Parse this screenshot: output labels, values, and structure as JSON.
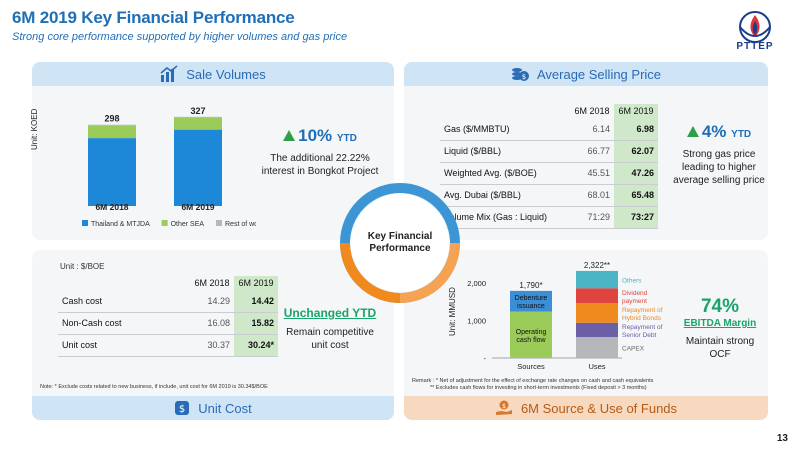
{
  "header": {
    "title": "6M 2019 Key Financial Performance",
    "subtitle": "Strong core performance supported by higher volumes and gas price",
    "logo_text": "PTTEP"
  },
  "center": {
    "label_line1": "Key Financial",
    "label_line2": "Performance"
  },
  "sale_volumes": {
    "title": "Sale Volumes",
    "ylabel": "Unit: KOED",
    "stat_value": "10%",
    "stat_suffix": "YTD",
    "stat_desc_line1": "The additional 22.22%",
    "stat_desc_line2": "interest in Bongkot Project",
    "chart_data": {
      "type": "bar",
      "stacked": true,
      "categories": [
        "6M 2018",
        "6M 2019"
      ],
      "totals": [
        298,
        327
      ],
      "ylabel": "Unit: KOED",
      "series": [
        {
          "name": "Thailand & MTJDA",
          "values": [
            249,
            280
          ],
          "color": "#1e88d8"
        },
        {
          "name": "Other SEA",
          "values": [
            47,
            45
          ],
          "color": "#9bcc59"
        },
        {
          "name": "Rest of world",
          "values": [
            2,
            2
          ],
          "color": "#b5b8bb"
        }
      ]
    }
  },
  "avg_price": {
    "title": "Average Selling Price",
    "col_2018": "6M 2018",
    "col_2019": "6M 2019",
    "rows": [
      {
        "label": "Gas ($/MMBTU)",
        "v2018": "6.14",
        "v2019": "6.98"
      },
      {
        "label": "Liquid ($/BBL)",
        "v2018": "66.77",
        "v2019": "62.07"
      },
      {
        "label": "Weighted Avg. ($/BOE)",
        "v2018": "45.51",
        "v2019": "47.26"
      },
      {
        "label": "Avg. Dubai ($/BBL)",
        "v2018": "68.01",
        "v2019": "65.48"
      },
      {
        "label": "Volume Mix (Gas : Liquid)",
        "v2018": "71:29",
        "v2019": "73:27"
      }
    ],
    "stat_value": "4%",
    "stat_suffix": "YTD",
    "stat_desc_line1": "Strong gas price",
    "stat_desc_line2": "leading to higher",
    "stat_desc_line3": "average selling price"
  },
  "unit_cost": {
    "title": "Unit Cost",
    "unit": "Unit : $/BOE",
    "col_2018": "6M 2018",
    "col_2019": "6M 2019",
    "rows": [
      {
        "label": "Cash cost",
        "v2018": "14.29",
        "v2019": "14.42"
      },
      {
        "label": "Non-Cash cost",
        "v2018": "16.08",
        "v2019": "15.82"
      },
      {
        "label": "Unit cost",
        "v2018": "30.37",
        "v2019": "30.24*"
      }
    ],
    "stat_value": "Unchanged YTD",
    "stat_desc_line1": "Remain competitive",
    "stat_desc_line2": "unit cost",
    "note": "Note:  * Exclude costs related to new business, if include, unit cost for 6M 2019 is 30.34$/BOE"
  },
  "funds": {
    "title": "6M Source & Use of Funds",
    "ylabel": "Unit: MMUSD",
    "stat_value": "74%",
    "stat_sub": "EBITDA Margin",
    "stat_desc_line1": "Maintain strong",
    "stat_desc_line2": "OCF",
    "remark_line1": "Remark : *    Net of adjustment for the effect of exchange rate changes on cash and cash equivalents",
    "remark_line2": "**   Excludes cash flows for investing in short-term investments (Fixed deposit > 3 months)",
    "chart_data": {
      "type": "bar",
      "stacked": true,
      "categories": [
        "Sources",
        "Uses"
      ],
      "totals": [
        "1,790*",
        "2,322**"
      ],
      "y_ticks": [
        "-",
        "1,000",
        "2,000"
      ],
      "ylim": [
        0,
        2500
      ],
      "ylabel": "Unit: MMUSD",
      "sources": [
        {
          "name": "Operating cash flow",
          "value": 1240,
          "color": "#9bcc59"
        },
        {
          "name": "Debenture issuance",
          "value": 550,
          "color": "#3c8fd6"
        }
      ],
      "uses": [
        {
          "name": "CAPEX",
          "value": 560,
          "color": "#b5b8bb"
        },
        {
          "name": "Repayment of Senior Debt",
          "value": 380,
          "color": "#6b5fa8"
        },
        {
          "name": "Repayment of Hybrid Bonds",
          "value": 520,
          "color": "#f08a1e"
        },
        {
          "name": "Dividend payment",
          "value": 400,
          "color": "#e0443e"
        },
        {
          "name": "Others",
          "value": 462,
          "color": "#4bb4c5"
        }
      ]
    }
  },
  "page_number": "13"
}
